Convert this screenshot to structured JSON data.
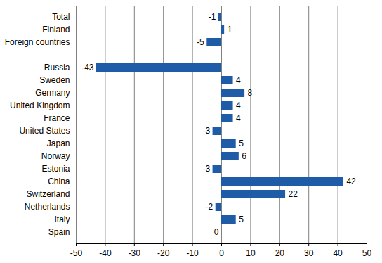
{
  "chart_data": {
    "type": "bar",
    "orientation": "horizontal",
    "categories": [
      "Total",
      "Finland",
      "Foreign countries",
      null,
      "Russia",
      "Sweden",
      "Germany",
      "United Kingdom",
      "France",
      "United States",
      "Japan",
      "Norway",
      "Estonia",
      "China",
      "Switzerland",
      "Netherlands",
      "Italy",
      "Spain"
    ],
    "values": [
      -1,
      1,
      -5,
      null,
      -43,
      4,
      8,
      4,
      4,
      -3,
      5,
      6,
      -3,
      42,
      22,
      -2,
      5,
      0
    ],
    "color": "#1f5ca8",
    "xlim": [
      -50,
      50
    ],
    "xticks": [
      -50,
      -40,
      -30,
      -20,
      -10,
      0,
      10,
      20,
      30,
      40,
      50
    ],
    "grid": true,
    "data_labels": true
  }
}
